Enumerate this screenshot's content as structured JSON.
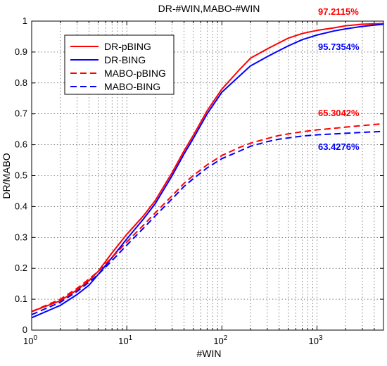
{
  "chart_data": {
    "type": "line",
    "title": "DR-#WIN,MABO-#WIN",
    "xlabel": "#WIN",
    "ylabel": "DR/MABO",
    "xscale": "log",
    "xlim": [
      1,
      5000
    ],
    "ylim": [
      0,
      1
    ],
    "grid": true,
    "legend_position": "top-left",
    "x_tick_labels": [
      "10^0",
      "10^1",
      "10^2",
      "10^3"
    ],
    "y_tick_labels": [
      "0",
      "0.1",
      "0.2",
      "0.3",
      "0.4",
      "0.5",
      "0.6",
      "0.7",
      "0.8",
      "0.9",
      "1"
    ],
    "series": [
      {
        "name": "DR-pBING",
        "color": "#ff0000",
        "line_style": "solid",
        "x": [
          1,
          2,
          3,
          4,
          5,
          7,
          10,
          15,
          20,
          30,
          40,
          50,
          70,
          100,
          150,
          200,
          300,
          400,
          500,
          700,
          1000,
          1500,
          2000,
          3000,
          5000
        ],
        "y": [
          0.06,
          0.095,
          0.13,
          0.16,
          0.19,
          0.25,
          0.31,
          0.37,
          0.42,
          0.51,
          0.58,
          0.63,
          0.71,
          0.78,
          0.84,
          0.88,
          0.91,
          0.93,
          0.945,
          0.96,
          0.97,
          0.978,
          0.985,
          0.99,
          0.992
        ]
      },
      {
        "name": "DR-BING",
        "color": "#0000ff",
        "line_style": "solid",
        "x": [
          1,
          2,
          3,
          4,
          5,
          7,
          10,
          15,
          20,
          30,
          40,
          50,
          70,
          100,
          150,
          200,
          300,
          400,
          500,
          700,
          1000,
          1500,
          2000,
          3000,
          5000
        ],
        "y": [
          0.04,
          0.08,
          0.115,
          0.145,
          0.18,
          0.235,
          0.295,
          0.36,
          0.41,
          0.5,
          0.57,
          0.62,
          0.7,
          0.77,
          0.82,
          0.855,
          0.885,
          0.905,
          0.92,
          0.94,
          0.955,
          0.968,
          0.975,
          0.983,
          0.99
        ]
      },
      {
        "name": "MABO-pBING",
        "color": "#ff0000",
        "line_style": "dashed",
        "x": [
          1,
          2,
          3,
          4,
          5,
          7,
          10,
          15,
          20,
          30,
          40,
          50,
          70,
          100,
          150,
          200,
          300,
          400,
          500,
          700,
          1000,
          1500,
          2000,
          3000,
          5000
        ],
        "y": [
          0.06,
          0.1,
          0.135,
          0.165,
          0.19,
          0.235,
          0.285,
          0.34,
          0.38,
          0.435,
          0.475,
          0.5,
          0.535,
          0.565,
          0.59,
          0.605,
          0.62,
          0.63,
          0.635,
          0.642,
          0.648,
          0.653,
          0.657,
          0.662,
          0.668
        ]
      },
      {
        "name": "MABO-BING",
        "color": "#0000ff",
        "line_style": "dashed",
        "x": [
          1,
          2,
          3,
          4,
          5,
          7,
          10,
          15,
          20,
          30,
          40,
          50,
          70,
          100,
          150,
          200,
          300,
          400,
          500,
          700,
          1000,
          1500,
          2000,
          3000,
          5000
        ],
        "y": [
          0.05,
          0.09,
          0.125,
          0.155,
          0.18,
          0.225,
          0.275,
          0.33,
          0.37,
          0.425,
          0.465,
          0.49,
          0.525,
          0.555,
          0.578,
          0.595,
          0.61,
          0.618,
          0.622,
          0.628,
          0.632,
          0.635,
          0.637,
          0.64,
          0.643
        ]
      }
    ],
    "annotations": [
      {
        "text": "97.2115%",
        "color": "#ff0000",
        "series": "DR-pBING"
      },
      {
        "text": "95.7354%",
        "color": "#0000ff",
        "series": "DR-BING"
      },
      {
        "text": "65.3042%",
        "color": "#ff0000",
        "series": "MABO-pBING"
      },
      {
        "text": "63.4276%",
        "color": "#0000ff",
        "series": "MABO-BING"
      }
    ]
  }
}
